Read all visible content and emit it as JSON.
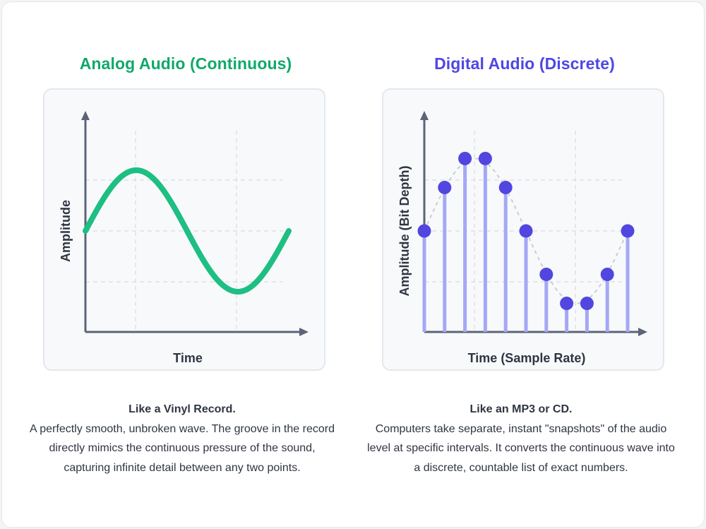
{
  "colors": {
    "analog": "#10a968",
    "wave": "#1dbf83",
    "digital": "#4f46e5",
    "dot": "#5146e0",
    "stem": "#a4a8f4",
    "axis": "#5b6577",
    "grid": "#d7dbe2",
    "text": "#2f3542"
  },
  "analog": {
    "title": "Analog Audio (Continuous)",
    "xlabel": "Time",
    "ylabel": "Amplitude",
    "caption_head": "Like a Vinyl Record.",
    "caption_body": "A perfectly smooth, unbroken wave. The groove in the record directly mimics the continuous pressure of the sound, capturing infinite detail between any two points."
  },
  "digital": {
    "title": "Digital Audio (Discrete)",
    "xlabel": "Time (Sample Rate)",
    "ylabel": "Amplitude (Bit Depth)",
    "caption_head": "Like an MP3 or CD.",
    "caption_body": "Computers take separate, instant \"snapshots\" of the audio level at specific intervals. It converts the continuous wave into a discrete, countable list of exact numbers."
  },
  "chart_data": [
    {
      "type": "line",
      "title": "Analog Audio (Continuous)",
      "xlabel": "Time",
      "ylabel": "Amplitude",
      "function": "sine",
      "cycles": 1,
      "amplitude": 1,
      "ylim": [
        -1.5,
        1.5
      ]
    },
    {
      "type": "scatter",
      "title": "Digital Audio (Discrete)",
      "xlabel": "Time (Sample Rate)",
      "ylabel": "Amplitude (Bit Depth)",
      "samples": [
        0,
        0.6,
        1,
        1,
        0.6,
        0,
        -0.6,
        -1,
        -1,
        -0.6,
        0
      ],
      "ylim": [
        -1.5,
        1.5
      ]
    }
  ]
}
